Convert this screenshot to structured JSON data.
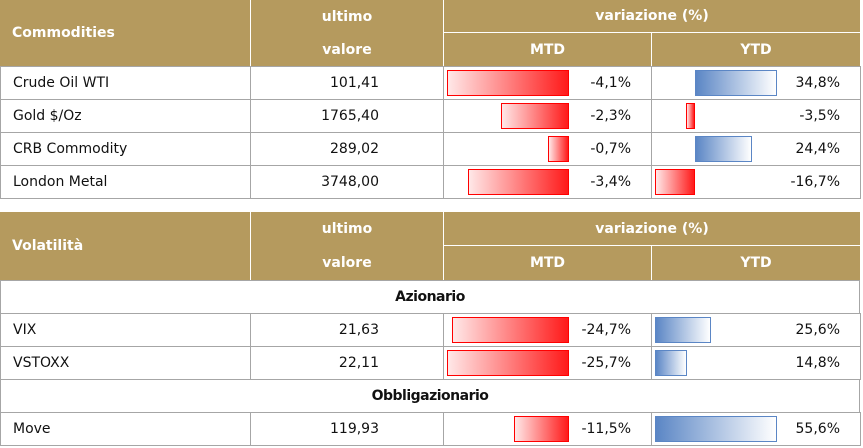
{
  "tables": [
    {
      "header": {
        "name": "Commodities",
        "value_top": "ultimo",
        "value_bottom": "valore",
        "variation": "variazione (%)",
        "mtd": "MTD",
        "ytd": "YTD"
      },
      "rows": [
        {
          "name": "Crude Oil WTI",
          "value": "101,41",
          "mtd": {
            "value": -4.1,
            "label": "-4,1%"
          },
          "ytd": {
            "value": 34.8,
            "label": "34,8%"
          }
        },
        {
          "name": "Gold $/Oz",
          "value": "1765,40",
          "mtd": {
            "value": -2.3,
            "label": "-2,3%"
          },
          "ytd": {
            "value": -3.5,
            "label": "-3,5%"
          }
        },
        {
          "name": "CRB Commodity",
          "value": "289,02",
          "mtd": {
            "value": -0.7,
            "label": "-0,7%"
          },
          "ytd": {
            "value": 24.4,
            "label": "24,4%"
          }
        },
        {
          "name": "London Metal",
          "value": "3748,00",
          "mtd": {
            "value": -3.4,
            "label": "-3,4%"
          },
          "ytd": {
            "value": -16.7,
            "label": "-16,7%"
          }
        }
      ]
    },
    {
      "header": {
        "name": "Volatilità",
        "value_top": "ultimo",
        "value_bottom": "valore",
        "variation": "variazione (%)",
        "mtd": "MTD",
        "ytd": "YTD"
      },
      "rows": [
        {
          "section": "Azionario"
        },
        {
          "name": "VIX",
          "value": "21,63",
          "mtd": {
            "value": -24.7,
            "label": "-24,7%"
          },
          "ytd": {
            "value": 25.6,
            "label": "25,6%"
          }
        },
        {
          "name": "VSTOXX",
          "value": "22,11",
          "mtd": {
            "value": -25.7,
            "label": "-25,7%"
          },
          "ytd": {
            "value": 14.8,
            "label": "14,8%"
          }
        },
        {
          "section": "Obbligazionario"
        },
        {
          "name": "Move",
          "value": "119,93",
          "mtd": {
            "value": -11.5,
            "label": "-11,5%"
          },
          "ytd": {
            "value": 55.6,
            "label": "55,6%"
          }
        }
      ]
    }
  ]
}
